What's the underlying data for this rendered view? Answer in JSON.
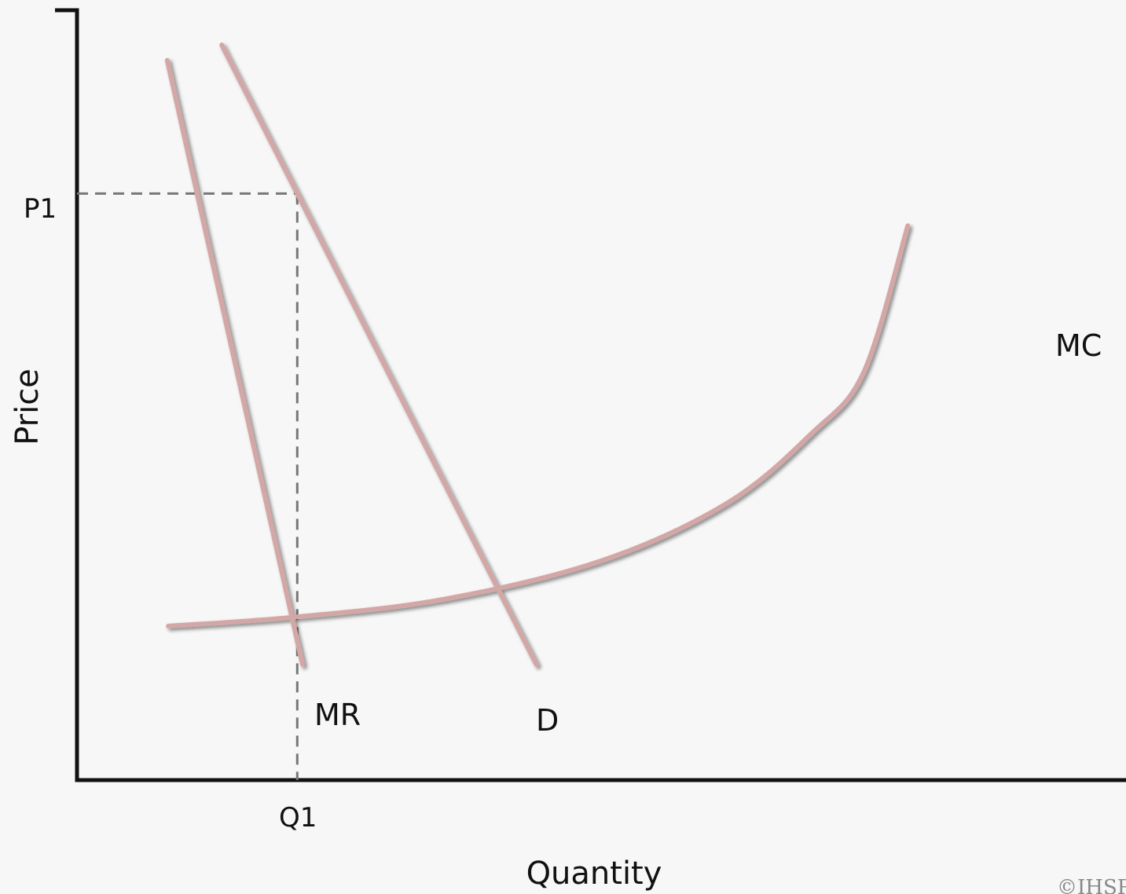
{
  "chart_data": {
    "type": "line",
    "title": "",
    "xlabel": "Quantity",
    "ylabel": "Price",
    "xlim": [
      0,
      100
    ],
    "ylim": [
      0,
      100
    ],
    "grid": false,
    "series_color": "#d4a7a7",
    "axis_color": "#111111",
    "guide_color": "#777777",
    "series": [
      {
        "name": "MR",
        "points": [
          [
            8.6,
            93.5
          ],
          [
            21.5,
            15.0
          ]
        ]
      },
      {
        "name": "D",
        "points": [
          [
            13.8,
            95.5
          ],
          [
            43.8,
            15.0
          ]
        ]
      },
      {
        "name": "MC",
        "points": [
          [
            8.7,
            20.0
          ],
          [
            21.0,
            21.2
          ],
          [
            35.0,
            23.5
          ],
          [
            50.0,
            28.5
          ],
          [
            62.0,
            36.0
          ],
          [
            70.0,
            45.0
          ],
          [
            75.0,
            53.0
          ],
          [
            79.2,
            72.0
          ]
        ]
      }
    ],
    "tick_labels": {
      "x": "Q1",
      "y": "P1"
    },
    "reference": {
      "x": 21.0,
      "y": 100.0
    },
    "watermark": "©IHSP"
  }
}
